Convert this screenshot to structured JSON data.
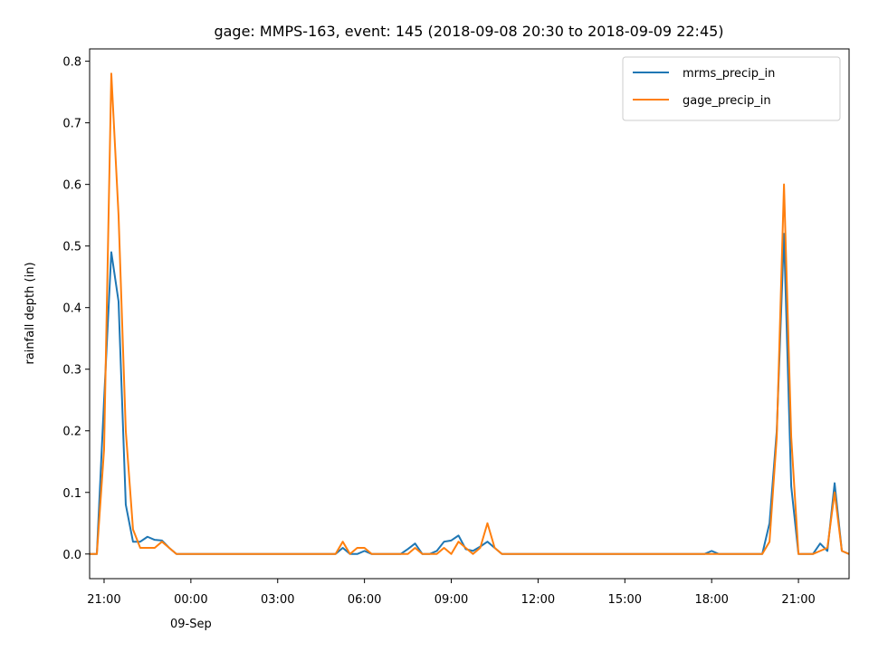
{
  "chart_data": {
    "type": "line",
    "title": "gage: MMPS-163, event: 145 (2018-09-08 20:30 to 2018-09-09 22:45)",
    "xlabel": "",
    "ylabel": "rainfall depth (in)",
    "ylim": [
      -0.04,
      0.82
    ],
    "xlim": [
      "2018-09-08 20:30",
      "2018-09-09 22:45"
    ],
    "yticks": [
      0.0,
      0.1,
      0.2,
      0.3,
      0.4,
      0.5,
      0.6,
      0.7,
      0.8
    ],
    "ytick_labels": [
      "0.0",
      "0.1",
      "0.2",
      "0.3",
      "0.4",
      "0.5",
      "0.6",
      "0.7",
      "0.8"
    ],
    "xticks": [
      {
        "t": "2018-09-08 21:00",
        "label": "21:00",
        "sub": ""
      },
      {
        "t": "2018-09-09 00:00",
        "label": "00:00",
        "sub": "09-Sep"
      },
      {
        "t": "2018-09-09 03:00",
        "label": "03:00",
        "sub": ""
      },
      {
        "t": "2018-09-09 06:00",
        "label": "06:00",
        "sub": ""
      },
      {
        "t": "2018-09-09 09:00",
        "label": "09:00",
        "sub": ""
      },
      {
        "t": "2018-09-09 12:00",
        "label": "12:00",
        "sub": ""
      },
      {
        "t": "2018-09-09 15:00",
        "label": "15:00",
        "sub": ""
      },
      {
        "t": "2018-09-09 18:00",
        "label": "18:00",
        "sub": ""
      },
      {
        "t": "2018-09-09 21:00",
        "label": "21:00",
        "sub": ""
      }
    ],
    "grid": false,
    "legend_position": "top-right",
    "series": [
      {
        "name": "mrms_precip_in",
        "color": "#1f77b4",
        "points": [
          [
            "2018-09-08 20:30",
            0.0
          ],
          [
            "2018-09-08 20:45",
            0.0
          ],
          [
            "2018-09-08 21:00",
            0.25
          ],
          [
            "2018-09-08 21:15",
            0.49
          ],
          [
            "2018-09-08 21:30",
            0.41
          ],
          [
            "2018-09-08 21:45",
            0.08
          ],
          [
            "2018-09-08 22:00",
            0.02
          ],
          [
            "2018-09-08 22:15",
            0.02
          ],
          [
            "2018-09-08 22:30",
            0.028
          ],
          [
            "2018-09-08 22:45",
            0.023
          ],
          [
            "2018-09-08 23:00",
            0.022
          ],
          [
            "2018-09-08 23:15",
            0.01
          ],
          [
            "2018-09-08 23:30",
            0.0
          ],
          [
            "2018-09-09 05:00",
            0.0
          ],
          [
            "2018-09-09 05:15",
            0.01
          ],
          [
            "2018-09-09 05:30",
            0.0
          ],
          [
            "2018-09-09 05:45",
            0.0
          ],
          [
            "2018-09-09 06:00",
            0.005
          ],
          [
            "2018-09-09 06:15",
            0.0
          ],
          [
            "2018-09-09 07:15",
            0.0
          ],
          [
            "2018-09-09 07:30",
            0.008
          ],
          [
            "2018-09-09 07:45",
            0.017
          ],
          [
            "2018-09-09 08:00",
            0.0
          ],
          [
            "2018-09-09 08:15",
            0.0
          ],
          [
            "2018-09-09 08:30",
            0.005
          ],
          [
            "2018-09-09 08:45",
            0.02
          ],
          [
            "2018-09-09 09:00",
            0.022
          ],
          [
            "2018-09-09 09:15",
            0.03
          ],
          [
            "2018-09-09 09:30",
            0.008
          ],
          [
            "2018-09-09 09:45",
            0.005
          ],
          [
            "2018-09-09 10:00",
            0.012
          ],
          [
            "2018-09-09 10:15",
            0.02
          ],
          [
            "2018-09-09 10:30",
            0.01
          ],
          [
            "2018-09-09 10:45",
            0.0
          ],
          [
            "2018-09-09 17:45",
            0.0
          ],
          [
            "2018-09-09 18:00",
            0.005
          ],
          [
            "2018-09-09 18:15",
            0.0
          ],
          [
            "2018-09-09 19:45",
            0.0
          ],
          [
            "2018-09-09 20:00",
            0.05
          ],
          [
            "2018-09-09 20:15",
            0.2
          ],
          [
            "2018-09-09 20:30",
            0.52
          ],
          [
            "2018-09-09 20:45",
            0.11
          ],
          [
            "2018-09-09 21:00",
            0.0
          ],
          [
            "2018-09-09 21:15",
            0.0
          ],
          [
            "2018-09-09 21:30",
            0.0
          ],
          [
            "2018-09-09 21:45",
            0.017
          ],
          [
            "2018-09-09 22:00",
            0.005
          ],
          [
            "2018-09-09 22:15",
            0.115
          ],
          [
            "2018-09-09 22:30",
            0.005
          ],
          [
            "2018-09-09 22:45",
            0.0
          ]
        ]
      },
      {
        "name": "gage_precip_in",
        "color": "#ff7f0e",
        "points": [
          [
            "2018-09-08 20:30",
            0.0
          ],
          [
            "2018-09-08 20:45",
            0.0
          ],
          [
            "2018-09-08 21:00",
            0.17
          ],
          [
            "2018-09-08 21:15",
            0.78
          ],
          [
            "2018-09-08 21:30",
            0.55
          ],
          [
            "2018-09-08 21:45",
            0.2
          ],
          [
            "2018-09-08 22:00",
            0.04
          ],
          [
            "2018-09-08 22:15",
            0.01
          ],
          [
            "2018-09-08 22:30",
            0.01
          ],
          [
            "2018-09-08 22:45",
            0.01
          ],
          [
            "2018-09-08 23:00",
            0.02
          ],
          [
            "2018-09-08 23:15",
            0.01
          ],
          [
            "2018-09-08 23:30",
            0.0
          ],
          [
            "2018-09-09 05:00",
            0.0
          ],
          [
            "2018-09-09 05:15",
            0.02
          ],
          [
            "2018-09-09 05:30",
            0.0
          ],
          [
            "2018-09-09 05:45",
            0.01
          ],
          [
            "2018-09-09 06:00",
            0.01
          ],
          [
            "2018-09-09 06:15",
            0.0
          ],
          [
            "2018-09-09 07:30",
            0.0
          ],
          [
            "2018-09-09 07:45",
            0.01
          ],
          [
            "2018-09-09 08:00",
            0.0
          ],
          [
            "2018-09-09 08:30",
            0.0
          ],
          [
            "2018-09-09 08:45",
            0.01
          ],
          [
            "2018-09-09 09:00",
            0.0
          ],
          [
            "2018-09-09 09:15",
            0.02
          ],
          [
            "2018-09-09 09:30",
            0.01
          ],
          [
            "2018-09-09 09:45",
            0.0
          ],
          [
            "2018-09-09 10:00",
            0.01
          ],
          [
            "2018-09-09 10:15",
            0.05
          ],
          [
            "2018-09-09 10:30",
            0.01
          ],
          [
            "2018-09-09 10:45",
            0.0
          ],
          [
            "2018-09-09 19:45",
            0.0
          ],
          [
            "2018-09-09 20:00",
            0.02
          ],
          [
            "2018-09-09 20:15",
            0.19
          ],
          [
            "2018-09-09 20:30",
            0.6
          ],
          [
            "2018-09-09 20:45",
            0.19
          ],
          [
            "2018-09-09 21:00",
            0.0
          ],
          [
            "2018-09-09 21:15",
            0.0
          ],
          [
            "2018-09-09 21:30",
            0.0
          ],
          [
            "2018-09-09 21:45",
            0.005
          ],
          [
            "2018-09-09 22:00",
            0.01
          ],
          [
            "2018-09-09 22:15",
            0.1
          ],
          [
            "2018-09-09 22:30",
            0.005
          ],
          [
            "2018-09-09 22:45",
            0.0
          ]
        ]
      }
    ]
  }
}
